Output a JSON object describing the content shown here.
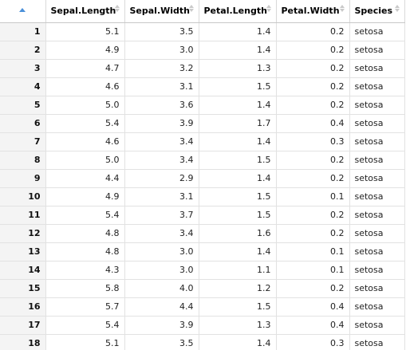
{
  "table": {
    "columns": [
      "Sepal.Length",
      "Sepal.Width",
      "Petal.Length",
      "Petal.Width",
      "Species"
    ],
    "rows": [
      {
        "index": "1",
        "cells": [
          "5.1",
          "3.5",
          "1.4",
          "0.2",
          "setosa"
        ]
      },
      {
        "index": "2",
        "cells": [
          "4.9",
          "3.0",
          "1.4",
          "0.2",
          "setosa"
        ]
      },
      {
        "index": "3",
        "cells": [
          "4.7",
          "3.2",
          "1.3",
          "0.2",
          "setosa"
        ]
      },
      {
        "index": "4",
        "cells": [
          "4.6",
          "3.1",
          "1.5",
          "0.2",
          "setosa"
        ]
      },
      {
        "index": "5",
        "cells": [
          "5.0",
          "3.6",
          "1.4",
          "0.2",
          "setosa"
        ]
      },
      {
        "index": "6",
        "cells": [
          "5.4",
          "3.9",
          "1.7",
          "0.4",
          "setosa"
        ]
      },
      {
        "index": "7",
        "cells": [
          "4.6",
          "3.4",
          "1.4",
          "0.3",
          "setosa"
        ]
      },
      {
        "index": "8",
        "cells": [
          "5.0",
          "3.4",
          "1.5",
          "0.2",
          "setosa"
        ]
      },
      {
        "index": "9",
        "cells": [
          "4.4",
          "2.9",
          "1.4",
          "0.2",
          "setosa"
        ]
      },
      {
        "index": "10",
        "cells": [
          "4.9",
          "3.1",
          "1.5",
          "0.1",
          "setosa"
        ]
      },
      {
        "index": "11",
        "cells": [
          "5.4",
          "3.7",
          "1.5",
          "0.2",
          "setosa"
        ]
      },
      {
        "index": "12",
        "cells": [
          "4.8",
          "3.4",
          "1.6",
          "0.2",
          "setosa"
        ]
      },
      {
        "index": "13",
        "cells": [
          "4.8",
          "3.0",
          "1.4",
          "0.1",
          "setosa"
        ]
      },
      {
        "index": "14",
        "cells": [
          "4.3",
          "3.0",
          "1.1",
          "0.1",
          "setosa"
        ]
      },
      {
        "index": "15",
        "cells": [
          "5.8",
          "4.0",
          "1.2",
          "0.2",
          "setosa"
        ]
      },
      {
        "index": "16",
        "cells": [
          "5.7",
          "4.4",
          "1.5",
          "0.4",
          "setosa"
        ]
      },
      {
        "index": "17",
        "cells": [
          "5.4",
          "3.9",
          "1.3",
          "0.4",
          "setosa"
        ]
      },
      {
        "index": "18",
        "cells": [
          "5.1",
          "3.5",
          "1.4",
          "0.3",
          "setosa"
        ]
      }
    ]
  },
  "icons": {
    "index_sort": "sort-ascending-icon",
    "column_sort": "sort-updown-icon"
  },
  "colors": {
    "sort_active": "#4a90d9",
    "index_background": "#f4f4f4"
  }
}
